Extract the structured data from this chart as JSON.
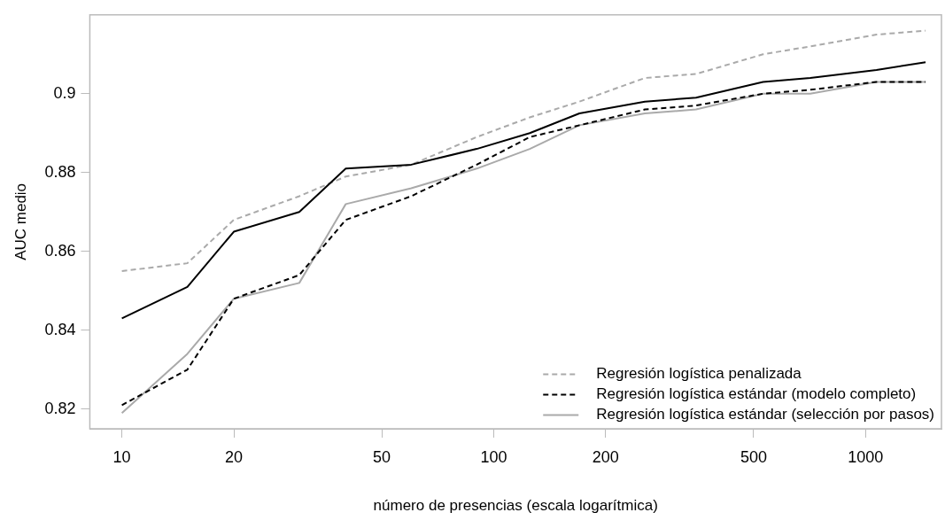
{
  "chart_data": {
    "type": "line",
    "xlabel": "número de presencias (escala logarítmica)",
    "ylabel": "AUC medio",
    "x": [
      10,
      15,
      20,
      30,
      40,
      60,
      90,
      125,
      170,
      255,
      350,
      530,
      710,
      1070,
      1450
    ],
    "series": [
      {
        "color": "#000000",
        "line_style": "solid",
        "values": [
          0.843,
          0.851,
          0.865,
          0.87,
          0.881,
          0.882,
          0.886,
          0.89,
          0.895,
          0.898,
          0.899,
          0.903,
          0.904,
          0.906,
          0.908
        ]
      },
      {
        "name": "Regresión logística penalizada",
        "color": "#aaaaaa",
        "line_style": "dashed",
        "values": [
          0.855,
          0.857,
          0.868,
          0.874,
          0.879,
          0.882,
          0.889,
          0.894,
          0.898,
          0.904,
          0.905,
          0.91,
          0.912,
          0.915,
          0.916
        ]
      },
      {
        "name": "Regresión logística estándar (modelo completo)",
        "color": "#000000",
        "line_style": "dashed",
        "values": [
          0.821,
          0.83,
          0.848,
          0.854,
          0.868,
          0.874,
          0.882,
          0.889,
          0.892,
          0.896,
          0.897,
          0.9,
          0.901,
          0.903,
          0.903
        ]
      },
      {
        "name": "Regresión logística estándar (selección por pasos)",
        "color": "#aaaaaa",
        "line_style": "solid",
        "values": [
          0.819,
          0.834,
          0.848,
          0.852,
          0.872,
          0.876,
          0.881,
          0.886,
          0.892,
          0.895,
          0.896,
          0.9,
          0.9,
          0.903,
          0.903
        ]
      }
    ],
    "log": "x",
    "xlim": [
      8.2,
      1600
    ],
    "xticks": [
      10,
      20,
      50,
      100,
      200,
      500,
      1000
    ],
    "ylim": [
      0.815,
      0.92
    ],
    "yticks": [
      0.82,
      0.84,
      0.86,
      0.88,
      0.9
    ],
    "legend": "bottom right",
    "grid": false,
    "marker": "none"
  }
}
